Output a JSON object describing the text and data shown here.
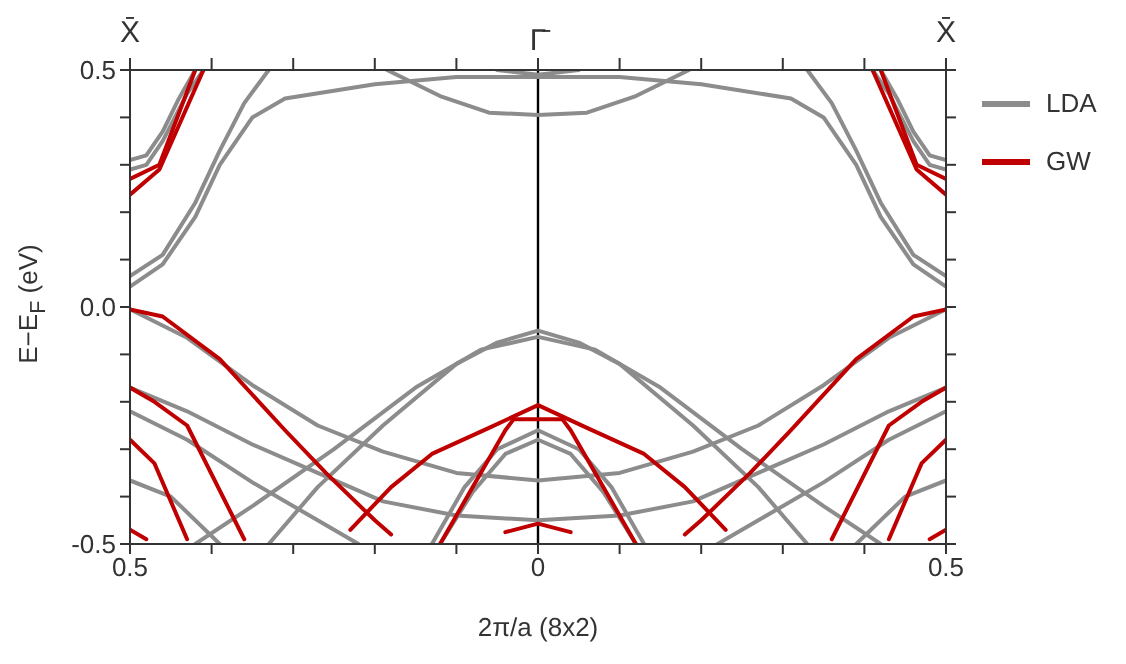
{
  "chart_data": {
    "type": "line",
    "xlabel": "2π/a (8x2)",
    "ylabel": "E−E$_{F}$ (eV)",
    "xlim": [
      -0.5,
      0.5
    ],
    "xticks": [
      {
        "value": -0.5,
        "label": "0.5"
      },
      {
        "value": -0.4,
        "label": null
      },
      {
        "value": -0.3,
        "label": null
      },
      {
        "value": -0.2,
        "label": null
      },
      {
        "value": -0.1,
        "label": null
      },
      {
        "value": 0,
        "label": "0"
      },
      {
        "value": 0.1,
        "label": null
      },
      {
        "value": 0.2,
        "label": null
      },
      {
        "value": 0.3,
        "label": null
      },
      {
        "value": 0.4,
        "label": null
      },
      {
        "value": 0.5,
        "label": "0.5"
      }
    ],
    "annotations": [
      "X̄",
      "X̄"
    ],
    "ylim": [
      -0.5,
      0.5
    ],
    "yticks": [
      {
        "value": -0.5,
        "label": "-0.5"
      },
      {
        "value": -0.4,
        "label": null
      },
      {
        "value": -0.3,
        "label": null
      },
      {
        "value": -0.2,
        "label": null
      },
      {
        "value": -0.1,
        "label": null
      },
      {
        "value": 0,
        "label": "0.0"
      },
      {
        "value": 0.1,
        "label": null
      },
      {
        "value": 0.2,
        "label": null
      },
      {
        "value": 0.3,
        "label": null
      },
      {
        "value": 0.4,
        "label": null
      },
      {
        "value": 0.5,
        "label": "0.5"
      }
    ],
    "grid": false,
    "legend": "top right",
    "marker": "none",
    "line_style": "solid",
    "ref_lines": [
      {
        "axis": "x",
        "value": 0,
        "label": "Γ̄",
        "color": "#000000",
        "line_style": "solid"
      }
    ],
    "series": [
      {
        "name": "LDA",
        "color": "#8c8c8c",
        "x": [
          -0.5,
          -0.43,
          -0.35,
          -0.27,
          -0.19,
          -0.1,
          0,
          0.1,
          0.19,
          0.27,
          0.35,
          0.43,
          0.5
        ],
        "values": [
          -0.005,
          -0.065,
          -0.165,
          -0.25,
          -0.305,
          -0.35,
          -0.366,
          -0.35,
          -0.305,
          -0.25,
          -0.165,
          -0.065,
          -0.005
        ]
      },
      {
        "color": "#8c8c8c",
        "x": [
          -0.5,
          -0.43,
          -0.35,
          -0.27,
          -0.19,
          -0.1,
          0,
          0.1,
          0.19,
          0.27,
          0.35,
          0.43,
          0.5
        ],
        "values": [
          -0.17,
          -0.22,
          -0.29,
          -0.35,
          -0.41,
          -0.44,
          -0.45,
          -0.44,
          -0.41,
          -0.35,
          -0.29,
          -0.22,
          -0.17
        ]
      },
      {
        "color": "#8c8c8c",
        "x": [
          -0.5,
          -0.43,
          -0.35,
          -0.27,
          -0.22
        ],
        "values": [
          -0.22,
          -0.28,
          -0.37,
          -0.45,
          -0.5
        ]
      },
      {
        "color": "#8c8c8c",
        "x": [
          0.22,
          0.27,
          0.35,
          0.43,
          0.5
        ],
        "values": [
          -0.5,
          -0.45,
          -0.37,
          -0.28,
          -0.22
        ]
      },
      {
        "color": "#8c8c8c",
        "x": [
          -0.5,
          -0.45,
          -0.39
        ],
        "values": [
          -0.366,
          -0.4,
          -0.5
        ]
      },
      {
        "color": "#8c8c8c",
        "x": [
          0.39,
          0.45,
          0.5
        ],
        "values": [
          -0.5,
          -0.4,
          -0.366
        ]
      },
      {
        "color": "#8c8c8c",
        "x": [
          -0.5,
          -0.46,
          -0.42,
          -0.39,
          -0.35,
          -0.31,
          -0.2,
          -0.1,
          0,
          0.1,
          0.2,
          0.31,
          0.35,
          0.39,
          0.42,
          0.46,
          0.5
        ],
        "values": [
          0.043,
          0.09,
          0.19,
          0.3,
          0.4,
          0.44,
          0.47,
          0.485,
          0.485,
          0.485,
          0.47,
          0.44,
          0.4,
          0.3,
          0.19,
          0.09,
          0.043
        ]
      },
      {
        "color": "#8c8c8c",
        "x": [
          -0.5,
          -0.46,
          -0.42,
          -0.39,
          -0.36,
          -0.33
        ],
        "values": [
          0.065,
          0.11,
          0.22,
          0.33,
          0.43,
          0.5
        ]
      },
      {
        "color": "#8c8c8c",
        "x": [
          0.33,
          0.36,
          0.39,
          0.42,
          0.46,
          0.5
        ],
        "values": [
          0.5,
          0.43,
          0.33,
          0.22,
          0.11,
          0.065
        ]
      },
      {
        "color": "#8c8c8c",
        "x": [
          -0.5,
          -0.48,
          -0.46,
          -0.44,
          -0.42
        ],
        "values": [
          0.31,
          0.32,
          0.37,
          0.44,
          0.5
        ]
      },
      {
        "color": "#8c8c8c",
        "x": [
          -0.5,
          -0.48,
          -0.46,
          -0.43,
          -0.41
        ],
        "values": [
          0.29,
          0.3,
          0.35,
          0.45,
          0.5
        ]
      },
      {
        "color": "#8c8c8c",
        "x": [
          0.42,
          0.44,
          0.46,
          0.48,
          0.5
        ],
        "values": [
          0.5,
          0.44,
          0.37,
          0.32,
          0.31
        ]
      },
      {
        "color": "#8c8c8c",
        "x": [
          0.41,
          0.43,
          0.46,
          0.48,
          0.5
        ],
        "values": [
          0.5,
          0.45,
          0.35,
          0.3,
          0.29
        ]
      },
      {
        "color": "#8c8c8c",
        "x": [
          -0.185,
          -0.12,
          -0.06,
          0,
          0.06,
          0.12,
          0.185
        ],
        "values": [
          0.5,
          0.445,
          0.41,
          0.405,
          0.41,
          0.445,
          0.5
        ]
      },
      {
        "color": "#8c8c8c",
        "x": [
          -0.05,
          0,
          0.05
        ],
        "values": [
          0.5,
          0.49,
          0.5
        ]
      },
      {
        "color": "#8c8c8c",
        "x": [
          -0.33,
          -0.27,
          -0.19,
          -0.1,
          -0.05,
          0,
          0.05,
          0.1,
          0.19,
          0.27,
          0.33
        ],
        "values": [
          -0.5,
          -0.38,
          -0.25,
          -0.12,
          -0.075,
          -0.05,
          -0.075,
          -0.12,
          -0.25,
          -0.38,
          -0.5
        ]
      },
      {
        "color": "#8c8c8c",
        "x": [
          -0.42,
          -0.35,
          -0.25,
          -0.15,
          -0.07,
          0,
          0.07,
          0.15,
          0.25,
          0.35,
          0.42
        ],
        "values": [
          -0.5,
          -0.42,
          -0.3,
          -0.17,
          -0.09,
          -0.063,
          -0.09,
          -0.17,
          -0.3,
          -0.42,
          -0.5
        ]
      },
      {
        "color": "#8c8c8c",
        "x": [
          -0.13,
          -0.09,
          -0.05,
          0,
          0.05,
          0.09,
          0.13
        ],
        "values": [
          -0.5,
          -0.38,
          -0.3,
          -0.26,
          -0.3,
          -0.38,
          -0.5
        ]
      },
      {
        "color": "#8c8c8c",
        "x": [
          -0.12,
          -0.08,
          -0.04,
          0,
          0.04,
          0.08,
          0.12
        ],
        "values": [
          -0.5,
          -0.39,
          -0.31,
          -0.28,
          -0.31,
          -0.39,
          -0.5
        ]
      },
      {
        "name": "GW",
        "color": "#c00000",
        "x": [
          -0.5,
          -0.464,
          -0.42
        ],
        "values": [
          0.27,
          0.3,
          0.5
        ]
      },
      {
        "color": "#c00000",
        "x": [
          -0.5,
          -0.464,
          -0.41
        ],
        "values": [
          0.237,
          0.29,
          0.5
        ]
      },
      {
        "color": "#c00000",
        "x": [
          0.42,
          0.464,
          0.5
        ],
        "values": [
          0.5,
          0.3,
          0.27
        ]
      },
      {
        "color": "#c00000",
        "x": [
          0.41,
          0.464,
          0.5
        ],
        "values": [
          0.5,
          0.29,
          0.237
        ]
      },
      {
        "color": "#c00000",
        "x": [
          -0.5,
          -0.46,
          -0.39,
          -0.31,
          -0.26,
          -0.2,
          -0.18
        ],
        "values": [
          -0.005,
          -0.02,
          -0.11,
          -0.26,
          -0.35,
          -0.45,
          -0.48
        ]
      },
      {
        "color": "#c00000",
        "x": [
          0.18,
          0.2,
          0.26,
          0.31,
          0.39,
          0.46,
          0.5
        ],
        "values": [
          -0.48,
          -0.45,
          -0.35,
          -0.26,
          -0.11,
          -0.02,
          -0.005
        ]
      },
      {
        "color": "#c00000",
        "x": [
          -0.5,
          -0.47,
          -0.43,
          -0.36
        ],
        "values": [
          -0.17,
          -0.2,
          -0.25,
          -0.49
        ]
      },
      {
        "color": "#c00000",
        "x": [
          0.36,
          0.43,
          0.47,
          0.5
        ],
        "values": [
          -0.49,
          -0.25,
          -0.2,
          -0.17
        ]
      },
      {
        "color": "#c00000",
        "x": [
          -0.5,
          -0.47,
          -0.43
        ],
        "values": [
          -0.28,
          -0.33,
          -0.49
        ]
      },
      {
        "color": "#c00000",
        "x": [
          0.43,
          0.47,
          0.5
        ],
        "values": [
          -0.49,
          -0.33,
          -0.28
        ]
      },
      {
        "color": "#c00000",
        "x": [
          -0.5,
          -0.48
        ],
        "values": [
          -0.47,
          -0.49
        ]
      },
      {
        "color": "#c00000",
        "x": [
          0.48,
          0.5
        ],
        "values": [
          -0.49,
          -0.47
        ]
      },
      {
        "color": "#c00000",
        "x": [
          -0.23,
          -0.18,
          -0.13,
          -0.06,
          0,
          0.06,
          0.13,
          0.18,
          0.23
        ],
        "values": [
          -0.47,
          -0.38,
          -0.31,
          -0.255,
          -0.207,
          -0.255,
          -0.31,
          -0.38,
          -0.47
        ]
      },
      {
        "color": "#c00000",
        "x": [
          -0.12,
          -0.08,
          -0.04,
          -0.03,
          0.03,
          0.04,
          0.08,
          0.12
        ],
        "values": [
          -0.5,
          -0.38,
          -0.26,
          -0.237,
          -0.237,
          -0.26,
          -0.38,
          -0.5
        ]
      },
      {
        "color": "#c00000",
        "x": [
          -0.04,
          0,
          0.04
        ],
        "values": [
          -0.475,
          -0.457,
          -0.475
        ]
      }
    ]
  }
}
